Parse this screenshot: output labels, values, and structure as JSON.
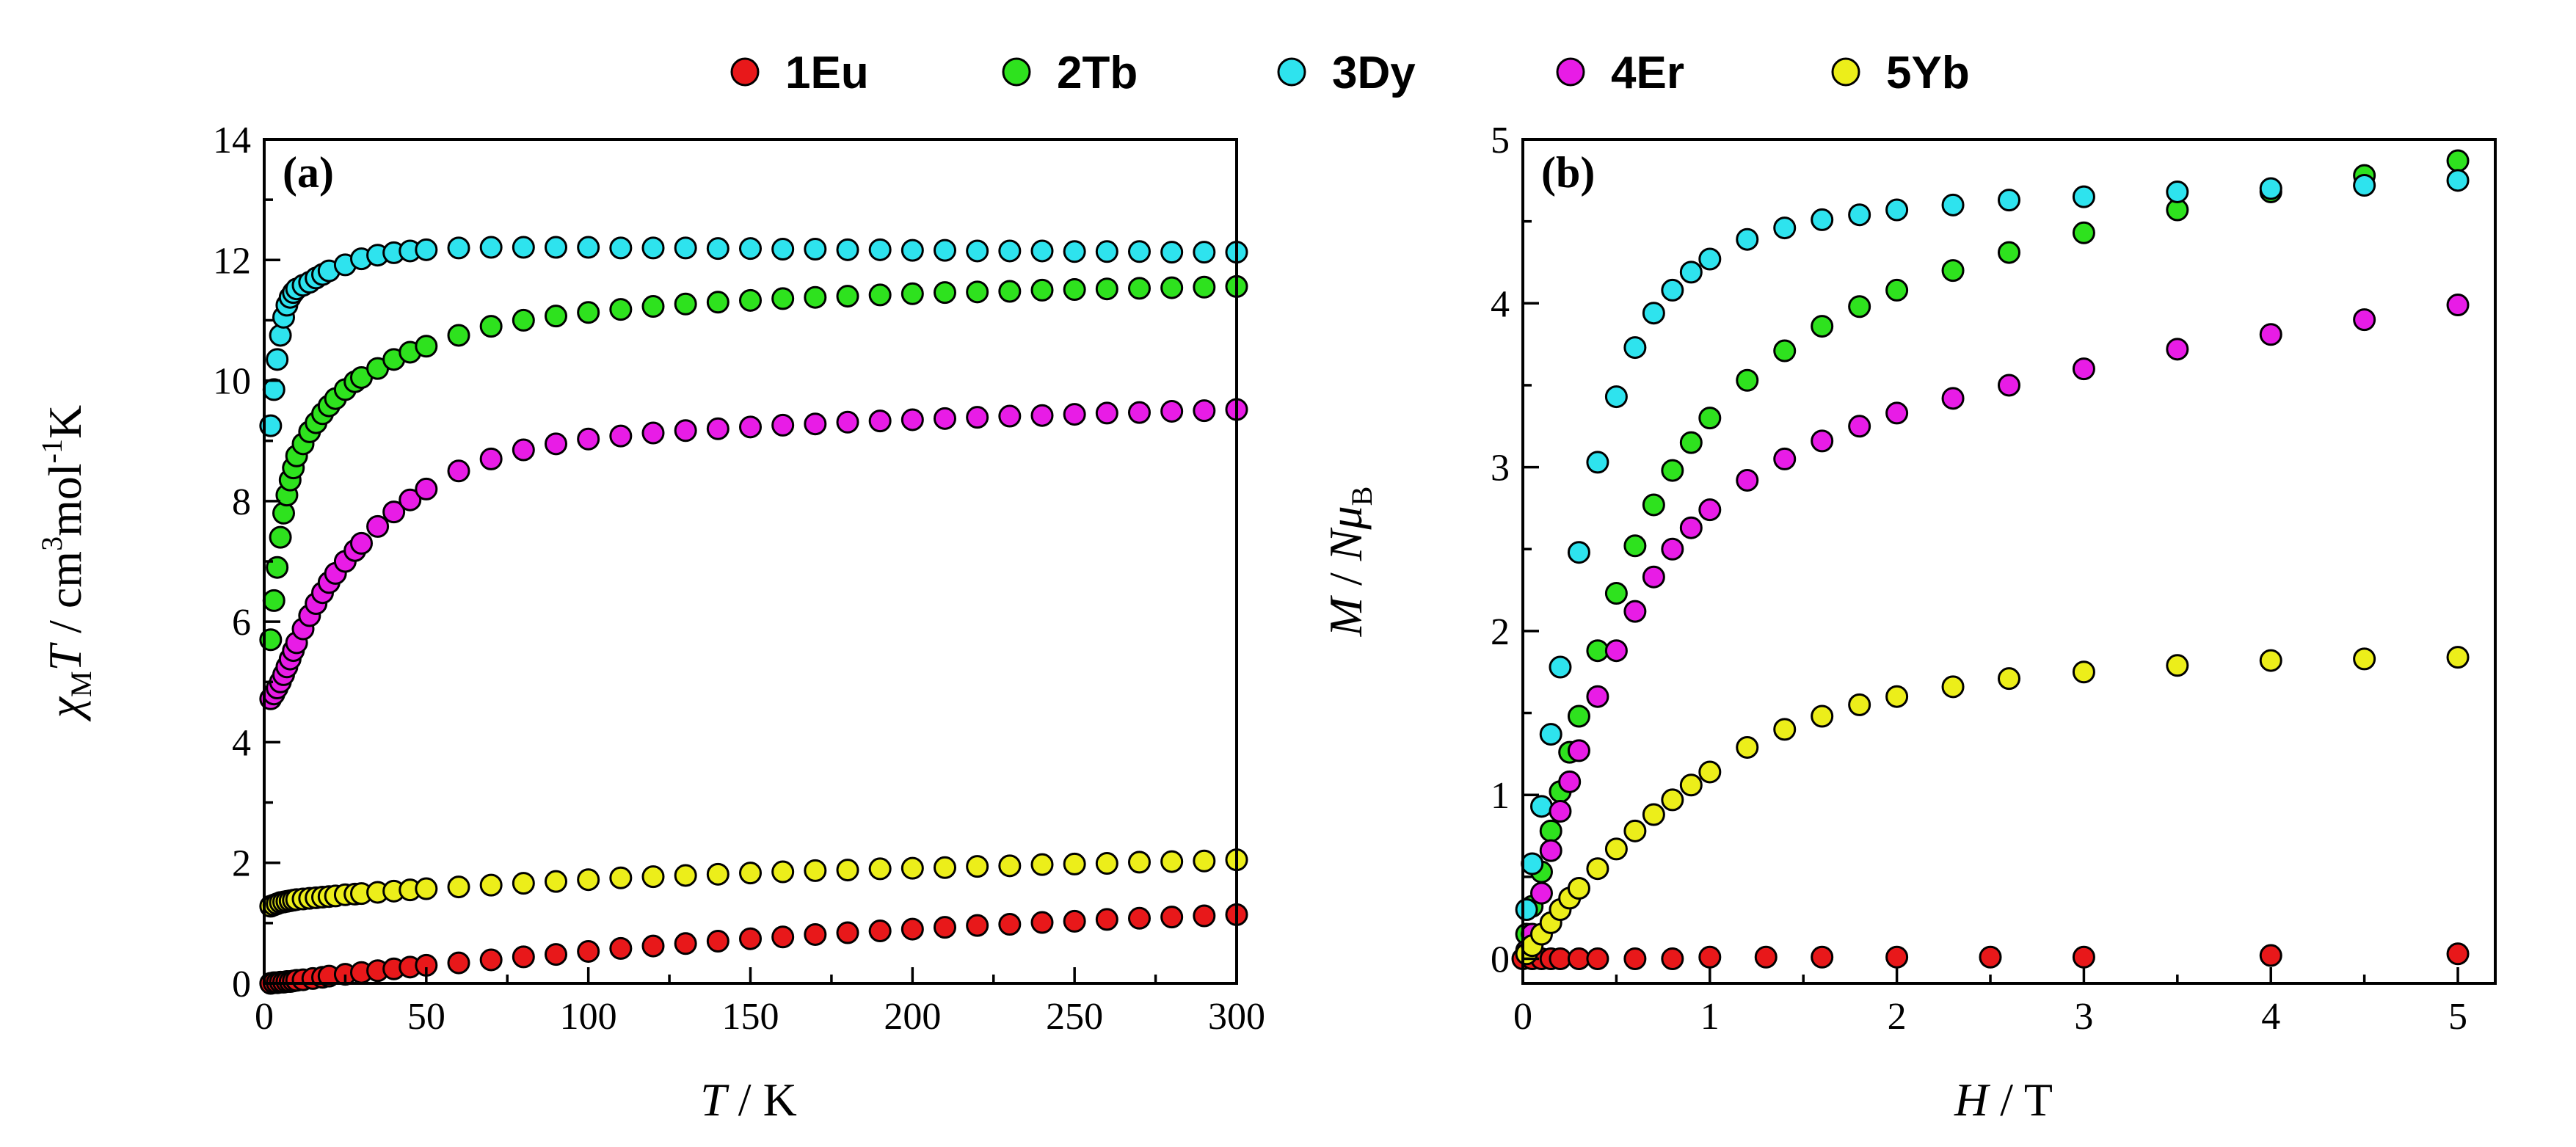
{
  "chart_data": [
    {
      "type": "scatter",
      "panel": "(a)",
      "xlabel": {
        "var": "T",
        "unit": " / K"
      },
      "ylabel": {
        "var": "χ",
        "sub": "M",
        "var2": "T",
        "unit_pre": " / cm",
        "sup1": "3",
        "unit_mid": "mol",
        "sup2": "-1",
        "unit_post": "K"
      },
      "xlim": [
        0,
        300
      ],
      "ylim": [
        0,
        14
      ],
      "xticks": [
        0,
        50,
        100,
        150,
        200,
        250,
        300
      ],
      "yticks": [
        0,
        2,
        4,
        6,
        8,
        10,
        12,
        14
      ],
      "series": [
        {
          "name": "1Eu",
          "color": "#e8181a",
          "x": [
            2,
            3,
            4,
            5,
            6,
            7,
            8,
            9,
            10,
            12,
            15,
            18,
            20,
            25,
            30,
            35,
            40,
            45,
            50,
            60,
            70,
            80,
            90,
            100,
            110,
            120,
            130,
            140,
            150,
            160,
            170,
            180,
            190,
            200,
            210,
            220,
            230,
            240,
            250,
            260,
            270,
            280,
            290,
            300
          ],
          "y": [
            0.0,
            0.01,
            0.01,
            0.02,
            0.02,
            0.03,
            0.03,
            0.04,
            0.05,
            0.06,
            0.08,
            0.1,
            0.12,
            0.15,
            0.18,
            0.21,
            0.24,
            0.27,
            0.3,
            0.34,
            0.39,
            0.44,
            0.48,
            0.53,
            0.58,
            0.62,
            0.66,
            0.7,
            0.74,
            0.77,
            0.81,
            0.84,
            0.87,
            0.9,
            0.93,
            0.96,
            0.98,
            1.01,
            1.03,
            1.06,
            1.08,
            1.1,
            1.12,
            1.14
          ]
        },
        {
          "name": "2Tb",
          "color": "#2ee21e",
          "x": [
            2,
            3,
            4,
            5,
            6,
            7,
            8,
            9,
            10,
            12,
            14,
            16,
            18,
            20,
            22,
            25,
            28,
            30,
            35,
            40,
            45,
            50,
            60,
            70,
            80,
            90,
            100,
            110,
            120,
            130,
            140,
            150,
            160,
            170,
            180,
            190,
            200,
            210,
            220,
            230,
            240,
            250,
            260,
            270,
            280,
            290,
            300
          ],
          "y": [
            5.7,
            6.35,
            6.9,
            7.4,
            7.8,
            8.1,
            8.35,
            8.55,
            8.75,
            8.95,
            9.15,
            9.3,
            9.45,
            9.58,
            9.7,
            9.85,
            9.98,
            10.05,
            10.2,
            10.35,
            10.47,
            10.57,
            10.75,
            10.9,
            11.0,
            11.07,
            11.13,
            11.18,
            11.23,
            11.27,
            11.3,
            11.33,
            11.36,
            11.38,
            11.4,
            11.42,
            11.44,
            11.46,
            11.47,
            11.48,
            11.5,
            11.51,
            11.52,
            11.53,
            11.54,
            11.55,
            11.56
          ]
        },
        {
          "name": "3Dy",
          "color": "#2ee3ee",
          "x": [
            2,
            3,
            4,
            5,
            6,
            7,
            8,
            9,
            10,
            12,
            14,
            16,
            18,
            20,
            25,
            30,
            35,
            40,
            45,
            50,
            60,
            70,
            80,
            90,
            100,
            110,
            120,
            130,
            140,
            150,
            160,
            170,
            180,
            190,
            200,
            210,
            220,
            230,
            240,
            250,
            260,
            270,
            280,
            290,
            300
          ],
          "y": [
            9.25,
            9.85,
            10.35,
            10.75,
            11.05,
            11.25,
            11.38,
            11.46,
            11.52,
            11.58,
            11.63,
            11.7,
            11.76,
            11.82,
            11.92,
            12.02,
            12.08,
            12.12,
            12.15,
            12.17,
            12.2,
            12.21,
            12.21,
            12.21,
            12.21,
            12.2,
            12.2,
            12.2,
            12.19,
            12.19,
            12.18,
            12.18,
            12.17,
            12.17,
            12.16,
            12.16,
            12.15,
            12.15,
            12.15,
            12.14,
            12.14,
            12.14,
            12.13,
            12.13,
            12.13
          ]
        },
        {
          "name": "4Er",
          "color": "#e81ce6",
          "x": [
            2,
            3,
            4,
            5,
            6,
            7,
            8,
            9,
            10,
            12,
            14,
            16,
            18,
            20,
            22,
            25,
            28,
            30,
            35,
            40,
            45,
            50,
            60,
            70,
            80,
            90,
            100,
            110,
            120,
            130,
            140,
            150,
            160,
            170,
            180,
            190,
            200,
            210,
            220,
            230,
            240,
            250,
            260,
            270,
            280,
            290,
            300
          ],
          "y": [
            4.72,
            4.8,
            4.9,
            5.0,
            5.12,
            5.25,
            5.38,
            5.52,
            5.65,
            5.88,
            6.1,
            6.3,
            6.48,
            6.65,
            6.8,
            7.0,
            7.18,
            7.3,
            7.58,
            7.82,
            8.02,
            8.2,
            8.5,
            8.7,
            8.85,
            8.95,
            9.03,
            9.08,
            9.13,
            9.17,
            9.2,
            9.23,
            9.26,
            9.28,
            9.31,
            9.33,
            9.35,
            9.37,
            9.39,
            9.41,
            9.42,
            9.44,
            9.46,
            9.47,
            9.49,
            9.5,
            9.52
          ]
        },
        {
          "name": "5Yb",
          "color": "#ecee1a",
          "x": [
            2,
            3,
            4,
            5,
            6,
            7,
            8,
            9,
            10,
            12,
            14,
            16,
            18,
            20,
            22,
            25,
            28,
            30,
            35,
            40,
            45,
            50,
            60,
            70,
            80,
            90,
            100,
            110,
            120,
            130,
            140,
            150,
            160,
            170,
            180,
            190,
            200,
            210,
            220,
            230,
            240,
            250,
            260,
            270,
            280,
            290,
            300
          ],
          "y": [
            1.28,
            1.3,
            1.32,
            1.34,
            1.35,
            1.36,
            1.37,
            1.38,
            1.39,
            1.4,
            1.41,
            1.42,
            1.43,
            1.44,
            1.45,
            1.47,
            1.48,
            1.49,
            1.51,
            1.53,
            1.55,
            1.57,
            1.6,
            1.63,
            1.66,
            1.69,
            1.72,
            1.75,
            1.77,
            1.79,
            1.81,
            1.83,
            1.85,
            1.87,
            1.88,
            1.9,
            1.91,
            1.92,
            1.94,
            1.95,
            1.97,
            1.98,
            1.99,
            2.01,
            2.02,
            2.03,
            2.05
          ]
        }
      ]
    },
    {
      "type": "scatter",
      "panel": "(b)",
      "xlabel": {
        "var": "H",
        "unit": " / T"
      },
      "ylabel": {
        "var": "M",
        "mid": " / ",
        "var2": "N",
        "greek": "μ",
        "sub": "B"
      },
      "xlim": [
        0,
        5.2
      ],
      "ylim": [
        -0.15,
        5.0
      ],
      "xticks": [
        0,
        1,
        2,
        3,
        4,
        5
      ],
      "yticks": [
        0,
        1,
        2,
        3,
        4,
        5
      ],
      "series": [
        {
          "name": "1Eu",
          "color": "#e8181a",
          "x": [
            0,
            0.05,
            0.1,
            0.15,
            0.2,
            0.3,
            0.4,
            0.6,
            0.8,
            1.0,
            1.3,
            1.6,
            2.0,
            2.5,
            3.0,
            4.0,
            5.0
          ],
          "y": [
            0,
            0,
            0,
            0,
            0,
            0,
            0,
            0,
            0,
            0.01,
            0.01,
            0.01,
            0.01,
            0.01,
            0.01,
            0.02,
            0.03
          ]
        },
        {
          "name": "2Tb",
          "color": "#2ee21e",
          "x": [
            0.02,
            0.05,
            0.1,
            0.15,
            0.2,
            0.25,
            0.3,
            0.4,
            0.5,
            0.6,
            0.7,
            0.8,
            0.9,
            1.0,
            1.2,
            1.4,
            1.6,
            1.8,
            2.0,
            2.3,
            2.6,
            3.0,
            3.5,
            4.0,
            4.5,
            5.0
          ],
          "y": [
            0.15,
            0.32,
            0.53,
            0.78,
            1.02,
            1.26,
            1.48,
            1.88,
            2.23,
            2.52,
            2.77,
            2.98,
            3.15,
            3.3,
            3.53,
            3.71,
            3.86,
            3.98,
            4.08,
            4.2,
            4.31,
            4.43,
            4.57,
            4.68,
            4.78,
            4.87
          ]
        },
        {
          "name": "3Dy",
          "color": "#2ee3ee",
          "x": [
            0.02,
            0.05,
            0.1,
            0.15,
            0.2,
            0.3,
            0.4,
            0.5,
            0.6,
            0.7,
            0.8,
            0.9,
            1.0,
            1.2,
            1.4,
            1.6,
            1.8,
            2.0,
            2.3,
            2.6,
            3.0,
            3.5,
            4.0,
            4.5,
            5.0
          ],
          "y": [
            0.3,
            0.58,
            0.93,
            1.37,
            1.78,
            2.48,
            3.03,
            3.43,
            3.73,
            3.94,
            4.08,
            4.19,
            4.27,
            4.39,
            4.46,
            4.51,
            4.54,
            4.57,
            4.6,
            4.63,
            4.65,
            4.68,
            4.7,
            4.72,
            4.75
          ]
        },
        {
          "name": "4Er",
          "color": "#e81ce6",
          "x": [
            0.02,
            0.05,
            0.1,
            0.15,
            0.2,
            0.25,
            0.3,
            0.4,
            0.5,
            0.6,
            0.7,
            0.8,
            0.9,
            1.0,
            1.2,
            1.4,
            1.6,
            1.8,
            2.0,
            2.3,
            2.6,
            3.0,
            3.5,
            4.0,
            4.5,
            5.0
          ],
          "y": [
            0.05,
            0.15,
            0.4,
            0.66,
            0.9,
            1.08,
            1.27,
            1.6,
            1.88,
            2.12,
            2.33,
            2.5,
            2.63,
            2.74,
            2.92,
            3.05,
            3.16,
            3.25,
            3.33,
            3.42,
            3.5,
            3.6,
            3.72,
            3.81,
            3.9,
            3.99
          ]
        },
        {
          "name": "5Yb",
          "color": "#ecee1a",
          "x": [
            0.02,
            0.05,
            0.1,
            0.15,
            0.2,
            0.25,
            0.3,
            0.4,
            0.5,
            0.6,
            0.7,
            0.8,
            0.9,
            1.0,
            1.2,
            1.4,
            1.6,
            1.8,
            2.0,
            2.3,
            2.6,
            3.0,
            3.5,
            4.0,
            4.5,
            5.0
          ],
          "y": [
            0.03,
            0.08,
            0.15,
            0.22,
            0.3,
            0.37,
            0.43,
            0.55,
            0.67,
            0.78,
            0.88,
            0.97,
            1.06,
            1.14,
            1.29,
            1.4,
            1.48,
            1.55,
            1.6,
            1.66,
            1.71,
            1.75,
            1.79,
            1.82,
            1.83,
            1.84
          ]
        }
      ]
    }
  ],
  "legend": [
    {
      "label": "1Eu",
      "color": "#e8181a"
    },
    {
      "label": "2Tb",
      "color": "#2ee21e"
    },
    {
      "label": "3Dy",
      "color": "#2ee3ee"
    },
    {
      "label": "4Er",
      "color": "#e81ce6"
    },
    {
      "label": "5Yb",
      "color": "#ecee1a"
    }
  ]
}
